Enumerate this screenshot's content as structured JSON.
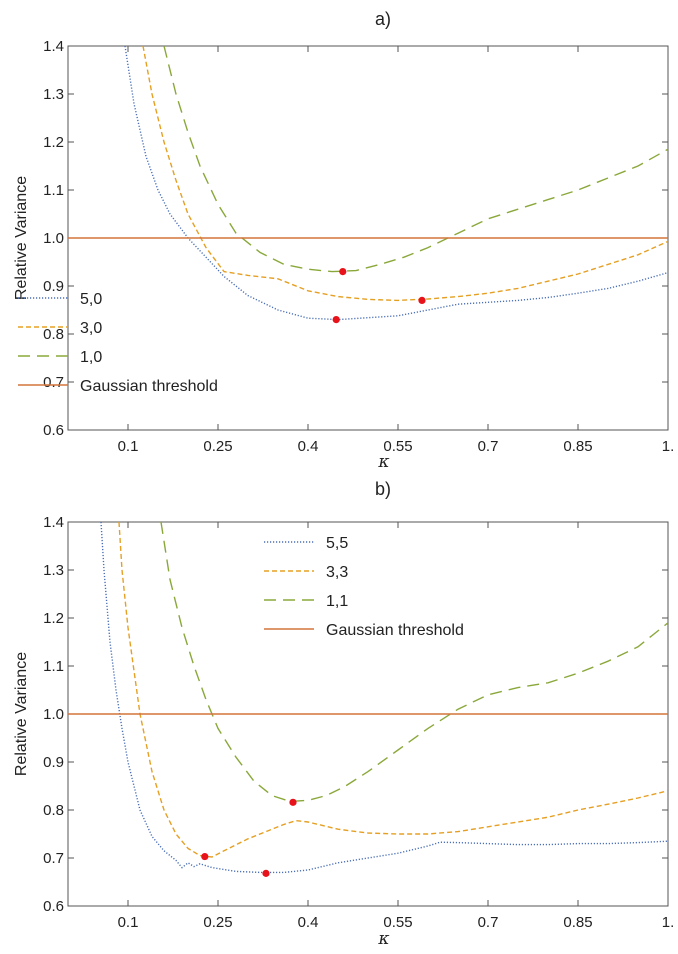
{
  "chart_data": [
    {
      "type": "line",
      "title": "a)",
      "xlabel": "κ",
      "ylabel": "Relative Variance",
      "xlim": [
        0.0,
        1.0
      ],
      "ylim": [
        0.6,
        1.4
      ],
      "xticks": [
        0.1,
        0.25,
        0.4,
        0.55,
        0.7,
        0.85,
        1.0
      ],
      "xtick_labels": [
        "0.1",
        "0.25",
        "0.4",
        "0.55",
        "0.7",
        "0.85",
        "1."
      ],
      "yticks": [
        0.6,
        0.7,
        0.8,
        0.9,
        1.0,
        1.1,
        1.2,
        1.3,
        1.4
      ],
      "ytick_labels": [
        "0.6",
        "0.7",
        "0.8",
        "0.9",
        "1.0",
        "1.1",
        "1.2",
        "1.3",
        "1.4"
      ],
      "grid": false,
      "legend_position": "bottom-left",
      "series": [
        {
          "name": "5,0",
          "style": "dotted",
          "color": "#4a6fb5",
          "x": [
            0.095,
            0.11,
            0.13,
            0.15,
            0.17,
            0.2,
            0.23,
            0.26,
            0.3,
            0.35,
            0.4,
            0.45,
            0.5,
            0.55,
            0.6,
            0.65,
            0.7,
            0.75,
            0.8,
            0.85,
            0.9,
            0.95,
            1.0
          ],
          "y": [
            1.4,
            1.28,
            1.17,
            1.1,
            1.05,
            1.0,
            0.96,
            0.92,
            0.88,
            0.85,
            0.833,
            0.83,
            0.834,
            0.838,
            0.85,
            0.862,
            0.866,
            0.87,
            0.876,
            0.885,
            0.895,
            0.91,
            0.928
          ],
          "marker": {
            "x": 0.447,
            "y": 0.83
          }
        },
        {
          "name": "3,0",
          "style": "dashed",
          "color": "#e5a024",
          "x": [
            0.125,
            0.14,
            0.16,
            0.18,
            0.2,
            0.23,
            0.26,
            0.3,
            0.35,
            0.4,
            0.45,
            0.5,
            0.55,
            0.6,
            0.65,
            0.7,
            0.75,
            0.8,
            0.85,
            0.9,
            0.95,
            1.0
          ],
          "y": [
            1.4,
            1.3,
            1.2,
            1.12,
            1.05,
            0.98,
            0.93,
            0.922,
            0.915,
            0.89,
            0.878,
            0.872,
            0.87,
            0.873,
            0.878,
            0.885,
            0.895,
            0.91,
            0.925,
            0.945,
            0.965,
            0.993
          ],
          "marker": {
            "x": 0.59,
            "y": 0.87
          }
        },
        {
          "name": "1,0",
          "style": "long-dashed",
          "color": "#8aa83a",
          "x": [
            0.16,
            0.18,
            0.2,
            0.22,
            0.25,
            0.28,
            0.32,
            0.36,
            0.4,
            0.44,
            0.48,
            0.52,
            0.56,
            0.6,
            0.65,
            0.7,
            0.75,
            0.8,
            0.85,
            0.9,
            0.95,
            1.0
          ],
          "y": [
            1.4,
            1.3,
            1.22,
            1.15,
            1.07,
            1.01,
            0.97,
            0.945,
            0.935,
            0.93,
            0.932,
            0.945,
            0.96,
            0.98,
            1.01,
            1.04,
            1.06,
            1.08,
            1.1,
            1.125,
            1.15,
            1.185
          ],
          "marker": {
            "x": 0.458,
            "y": 0.93
          }
        },
        {
          "name": "Gaussian threshold",
          "style": "solid",
          "color": "#d4733a",
          "x": [
            0.0,
            1.0
          ],
          "y": [
            1.0,
            1.0
          ]
        }
      ]
    },
    {
      "type": "line",
      "title": "b)",
      "xlabel": "κ",
      "ylabel": "Relative Variance",
      "xlim": [
        0.0,
        1.0
      ],
      "ylim": [
        0.6,
        1.4
      ],
      "xticks": [
        0.1,
        0.25,
        0.4,
        0.55,
        0.7,
        0.85,
        1.0
      ],
      "xtick_labels": [
        "0.1",
        "0.25",
        "0.4",
        "0.55",
        "0.7",
        "0.85",
        "1."
      ],
      "yticks": [
        0.6,
        0.7,
        0.8,
        0.9,
        1.0,
        1.1,
        1.2,
        1.3,
        1.4
      ],
      "ytick_labels": [
        "0.6",
        "0.7",
        "0.8",
        "0.9",
        "1.0",
        "1.1",
        "1.2",
        "1.3",
        "1.4"
      ],
      "grid": false,
      "legend_position": "top-center",
      "series": [
        {
          "name": "5,5",
          "style": "dotted",
          "color": "#4a6fb5",
          "x": [
            0.055,
            0.06,
            0.07,
            0.08,
            0.09,
            0.1,
            0.12,
            0.14,
            0.16,
            0.18,
            0.19,
            0.2,
            0.21,
            0.22,
            0.24,
            0.28,
            0.32,
            0.36,
            0.4,
            0.45,
            0.5,
            0.55,
            0.6,
            0.62,
            0.65,
            0.7,
            0.75,
            0.8,
            0.85,
            0.9,
            0.95,
            1.0
          ],
          "y": [
            1.4,
            1.3,
            1.15,
            1.05,
            0.97,
            0.9,
            0.8,
            0.745,
            0.715,
            0.695,
            0.68,
            0.69,
            0.682,
            0.688,
            0.68,
            0.672,
            0.67,
            0.67,
            0.675,
            0.69,
            0.7,
            0.71,
            0.725,
            0.733,
            0.732,
            0.73,
            0.728,
            0.728,
            0.73,
            0.73,
            0.732,
            0.735
          ],
          "marker": {
            "x": 0.33,
            "y": 0.668
          }
        },
        {
          "name": "3,3",
          "style": "dashed",
          "color": "#e5a024",
          "x": [
            0.085,
            0.09,
            0.1,
            0.12,
            0.14,
            0.16,
            0.18,
            0.2,
            0.22,
            0.24,
            0.26,
            0.3,
            0.34,
            0.36,
            0.38,
            0.4,
            0.45,
            0.5,
            0.55,
            0.6,
            0.65,
            0.7,
            0.75,
            0.8,
            0.85,
            0.9,
            0.95,
            1.0
          ],
          "y": [
            1.4,
            1.3,
            1.18,
            1.0,
            0.88,
            0.8,
            0.75,
            0.72,
            0.705,
            0.702,
            0.715,
            0.74,
            0.76,
            0.77,
            0.778,
            0.775,
            0.76,
            0.752,
            0.75,
            0.75,
            0.755,
            0.765,
            0.775,
            0.785,
            0.8,
            0.812,
            0.825,
            0.84
          ],
          "marker": {
            "x": 0.228,
            "y": 0.703
          }
        },
        {
          "name": "1,1",
          "style": "long-dashed",
          "color": "#8aa83a",
          "x": [
            0.155,
            0.17,
            0.19,
            0.21,
            0.23,
            0.25,
            0.28,
            0.31,
            0.34,
            0.37,
            0.4,
            0.43,
            0.46,
            0.5,
            0.55,
            0.6,
            0.65,
            0.7,
            0.75,
            0.8,
            0.85,
            0.9,
            0.95,
            1.0
          ],
          "y": [
            1.4,
            1.28,
            1.18,
            1.1,
            1.03,
            0.97,
            0.91,
            0.86,
            0.83,
            0.818,
            0.82,
            0.83,
            0.848,
            0.88,
            0.925,
            0.97,
            1.01,
            1.04,
            1.055,
            1.065,
            1.085,
            1.11,
            1.14,
            1.19
          ],
          "marker": {
            "x": 0.375,
            "y": 0.816
          }
        },
        {
          "name": "Gaussian threshold",
          "style": "solid",
          "color": "#d4733a",
          "x": [
            0.0,
            1.0
          ],
          "y": [
            1.0,
            1.0
          ]
        }
      ]
    }
  ]
}
